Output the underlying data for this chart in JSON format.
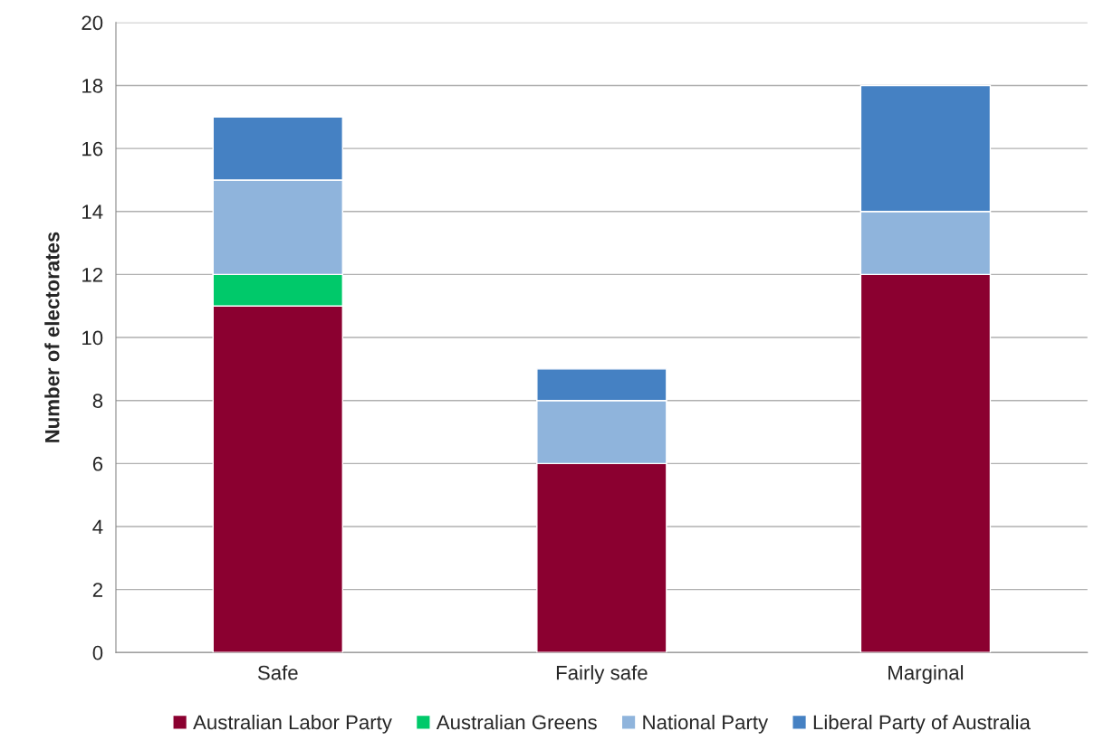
{
  "chart_data": {
    "type": "bar",
    "stacked": true,
    "ylabel": "Number of electorates",
    "categories": [
      "Safe",
      "Fairly safe",
      "Marginal"
    ],
    "series": [
      {
        "name": "Australian Labor Party",
        "color": "#8b0030",
        "values": [
          11,
          6,
          12
        ]
      },
      {
        "name": "Australian Greens",
        "color": "#00c96a",
        "values": [
          1,
          0,
          0
        ]
      },
      {
        "name": "National Party",
        "color": "#8fb4dc",
        "values": [
          3,
          2,
          2
        ]
      },
      {
        "name": "Liberal Party of Australia",
        "color": "#4581c3",
        "values": [
          2,
          1,
          4
        ]
      }
    ],
    "ylim": [
      0,
      20
    ],
    "yticks": [
      0,
      2,
      4,
      6,
      8,
      10,
      12,
      14,
      16,
      18,
      20
    ],
    "grid": "y",
    "legend": "bottom"
  }
}
